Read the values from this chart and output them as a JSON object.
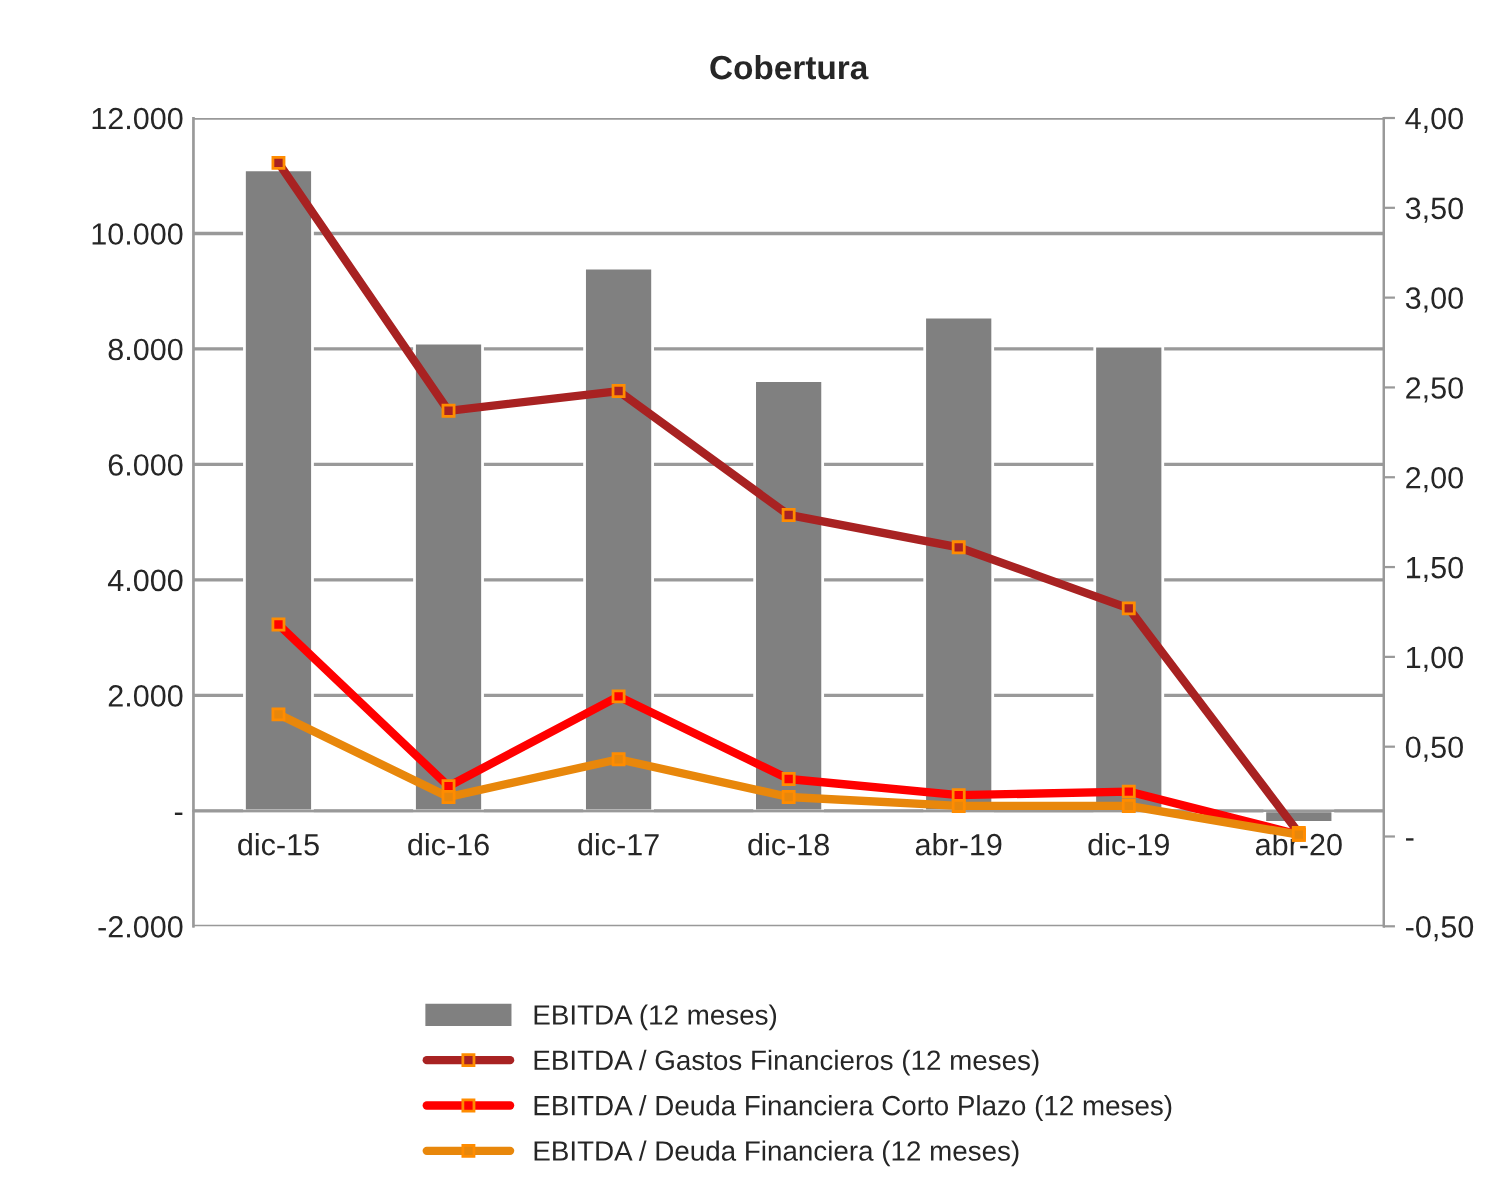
{
  "chart_data": {
    "type": "bar",
    "title": "Cobertura",
    "categories": [
      "dic-15",
      "dic-16",
      "dic-17",
      "dic-18",
      "abr-19",
      "dic-19",
      "abr-20"
    ],
    "series": [
      {
        "name": "EBITDA (12 meses)",
        "color": "#808080",
        "values": [
          11100,
          8100,
          9400,
          7450,
          8550,
          8050,
          -200
        ]
      },
      {
        "name": "EBITDA / Gastos Financieros (12 meses)",
        "type": "line",
        "axis": "y2",
        "color": "#a82222",
        "values": [
          3.75,
          2.37,
          2.48,
          1.79,
          1.61,
          1.27,
          0.02
        ]
      },
      {
        "name": "EBITDA / Deuda Financiera Corto Plazo (12 meses)",
        "type": "line",
        "axis": "y2",
        "color": "#ff0000",
        "values": [
          1.18,
          0.28,
          0.78,
          0.32,
          0.23,
          0.25,
          0.01
        ]
      },
      {
        "name": "EBITDA / Deuda Financiera (12 meses)",
        "type": "line",
        "axis": "y2",
        "color": "#e8870b",
        "values": [
          0.68,
          0.22,
          0.43,
          0.22,
          0.17,
          0.17,
          0.01
        ]
      }
    ],
    "ylim": [
      -2000,
      12000
    ],
    "yticks": [
      {
        "value": -2000,
        "label": "-2.000"
      },
      {
        "value": 0,
        "label": "-"
      },
      {
        "value": 2000,
        "label": "2.000"
      },
      {
        "value": 4000,
        "label": "4.000"
      },
      {
        "value": 6000,
        "label": "6.000"
      },
      {
        "value": 8000,
        "label": "8.000"
      },
      {
        "value": 10000,
        "label": "10.000"
      },
      {
        "value": 12000,
        "label": "12.000"
      }
    ],
    "y2lim": [
      -0.5,
      4.0
    ],
    "y2ticks": [
      {
        "value": -0.5,
        "label": "-0,50"
      },
      {
        "value": 0,
        "label": "-"
      },
      {
        "value": 0.5,
        "label": "0,50"
      },
      {
        "value": 1.0,
        "label": "1,00"
      },
      {
        "value": 1.5,
        "label": "1,50"
      },
      {
        "value": 2.0,
        "label": "2,00"
      },
      {
        "value": 2.5,
        "label": "2,50"
      },
      {
        "value": 3.0,
        "label": "3,00"
      },
      {
        "value": 3.5,
        "label": "3,50"
      },
      {
        "value": 4.0,
        "label": "4,00"
      }
    ],
    "grid": "y",
    "legend": "bottom",
    "marker": "square",
    "line_style": "solid"
  }
}
